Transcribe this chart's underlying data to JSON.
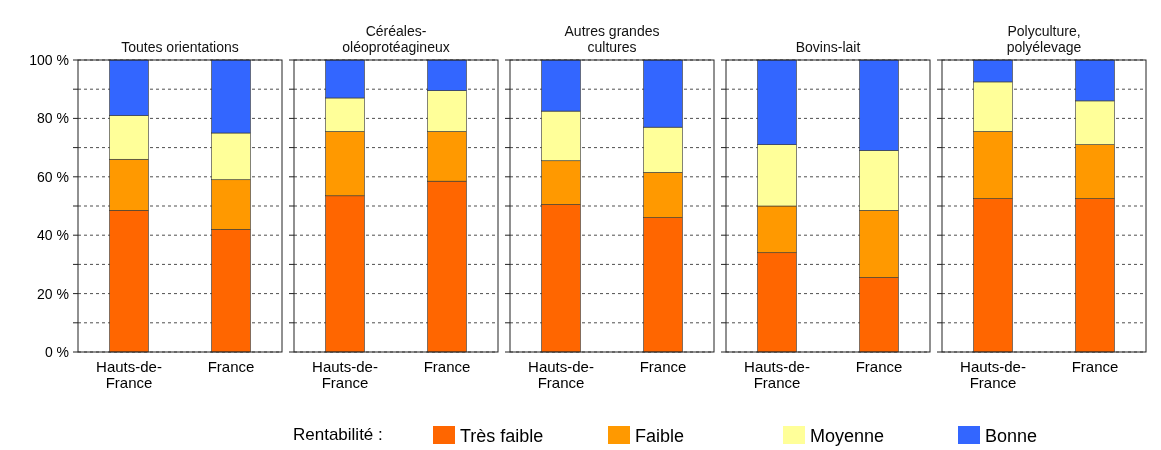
{
  "chart_data": [
    {
      "type": "bar",
      "stacked": true,
      "title": "Toutes  orientations",
      "categories": [
        "Hauts-de-France",
        "France"
      ],
      "ylim": [
        0,
        100
      ],
      "yticks": [
        {
          "value": 0,
          "label": "0 %"
        },
        {
          "value": 10,
          "label": null
        },
        {
          "value": 20,
          "label": "20 %"
        },
        {
          "value": 30,
          "label": null
        },
        {
          "value": 40,
          "label": "40 %"
        },
        {
          "value": 50,
          "label": null
        },
        {
          "value": 60,
          "label": "60 %"
        },
        {
          "value": 70,
          "label": null
        },
        {
          "value": 80,
          "label": "80 %"
        },
        {
          "value": 90,
          "label": null
        },
        {
          "value": 100,
          "label": "100 %"
        }
      ],
      "grid": "y",
      "legend": "bottom",
      "legend_title": "Rentabilité :",
      "series": [
        {
          "name": "Très faible",
          "color": "#ff6600",
          "values": [
            48.5,
            42
          ]
        },
        {
          "name": "Faible",
          "color": "#ff9900",
          "values": [
            17.5,
            17
          ]
        },
        {
          "name": "Moyenne",
          "color": "#ffff99",
          "values": [
            15,
            16
          ]
        },
        {
          "name": "Bonne",
          "color": "#3366ff",
          "values": [
            19,
            25
          ]
        }
      ]
    },
    {
      "type": "bar",
      "stacked": true,
      "title": "Céréales-oléoprotéagineux",
      "categories": [
        "Hauts-de-France",
        "France"
      ],
      "ylim": [
        0,
        100
      ],
      "yticks": [
        0,
        10,
        20,
        30,
        40,
        50,
        60,
        70,
        80,
        90,
        100
      ],
      "tick_labels": "x",
      "grid": "y",
      "series": [
        {
          "color": "#ff6600",
          "values": [
            53.5,
            58.5
          ]
        },
        {
          "color": "#ff9900",
          "values": [
            22,
            17
          ]
        },
        {
          "color": "#ffff99",
          "values": [
            11.5,
            14
          ]
        },
        {
          "color": "#3366ff",
          "values": [
            13,
            10.5
          ]
        }
      ]
    },
    {
      "type": "bar",
      "stacked": true,
      "title": "Autres grandes cultures",
      "categories": [
        "Hauts-de-France",
        "France"
      ],
      "ylim": [
        0,
        100
      ],
      "yticks": [
        0,
        10,
        20,
        30,
        40,
        50,
        60,
        70,
        80,
        90,
        100
      ],
      "tick_labels": "x",
      "grid": "y",
      "series": [
        {
          "color": "#ff6600",
          "values": [
            50.5,
            46
          ]
        },
        {
          "color": "#ff9900",
          "values": [
            15,
            15.5
          ]
        },
        {
          "color": "#ffff99",
          "values": [
            17,
            15.5
          ]
        },
        {
          "color": "#3366ff",
          "values": [
            17.5,
            23
          ]
        }
      ]
    },
    {
      "type": "bar",
      "stacked": true,
      "title": "Bovins-lait",
      "categories": [
        "Hauts-de-France",
        "France"
      ],
      "ylim": [
        0,
        100
      ],
      "yticks": [
        0,
        10,
        20,
        30,
        40,
        50,
        60,
        70,
        80,
        90,
        100
      ],
      "tick_labels": "x",
      "grid": "y",
      "series": [
        {
          "color": "#ff6600",
          "values": [
            34,
            25.5
          ]
        },
        {
          "color": "#ff9900",
          "values": [
            16,
            23
          ]
        },
        {
          "color": "#ffff99",
          "values": [
            21,
            20.5
          ]
        },
        {
          "color": "#3366ff",
          "values": [
            29,
            31
          ]
        }
      ]
    },
    {
      "type": "bar",
      "stacked": true,
      "title": "Polyculture, polyélevage",
      "categories": [
        "Hauts-de-France",
        "France"
      ],
      "ylim": [
        0,
        100
      ],
      "yticks": [
        0,
        10,
        20,
        30,
        40,
        50,
        60,
        70,
        80,
        90,
        100
      ],
      "tick_labels": "x",
      "grid": "y",
      "series": [
        {
          "color": "#ff6600",
          "values": [
            52.5,
            52.5
          ]
        },
        {
          "color": "#ff9900",
          "values": [
            23,
            18.5
          ]
        },
        {
          "color": "#ffff99",
          "values": [
            17,
            15
          ]
        },
        {
          "color": "#3366ff",
          "values": [
            7.5,
            14
          ]
        }
      ]
    }
  ]
}
